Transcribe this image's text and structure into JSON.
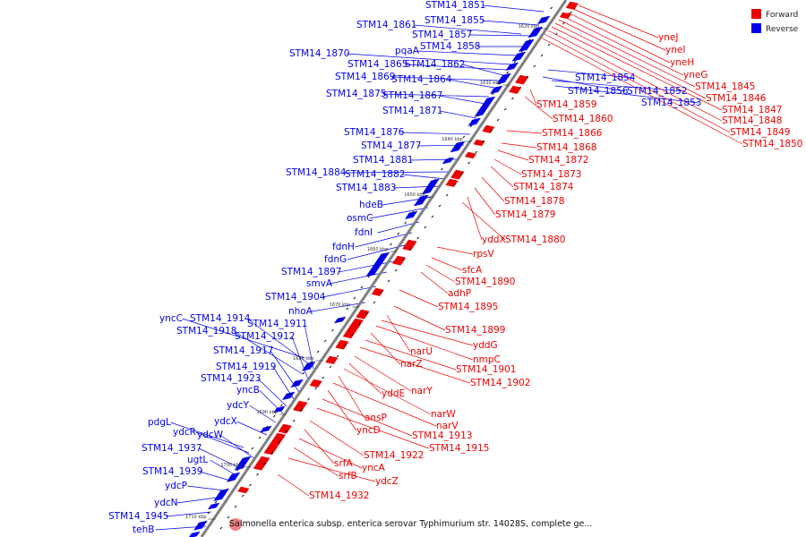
{
  "legend": {
    "forward_label": "Forward",
    "reverse_label": "Reverse",
    "forward_color": "#ee0000",
    "reverse_color": "#0000ee"
  },
  "caption": "Salmonella enterica subsp. enterica serovar Typhimurium str. 14028S, complete ge...",
  "colors": {
    "backbone": "#808080",
    "connector_forward": "#ee0000",
    "connector_reverse": "#0000ee",
    "tick_marker": "#111111"
  },
  "ticks": [
    "1620 kbp",
    "1630 kbp",
    "1640 kbp",
    "1650 kbp",
    "1660 kbp",
    "1670 kbp",
    "1680 kbp",
    "1690 kbp",
    "1700 kbp",
    "1710 kbp"
  ],
  "reverse_genes": [
    "STM14_1851",
    "STM14_1855",
    "STM14_1857",
    "STM14_1858",
    "STM14_1861",
    "pqaA",
    "STM14_1870",
    "STM14_1865",
    "STM14_1862",
    "STM14_1869",
    "STM14_1864",
    "STM14_1875",
    "STM14_1867",
    "STM14_1871",
    "STM14_1876",
    "STM14_1877",
    "STM14_1881",
    "STM14_1884",
    "STM14_1882",
    "STM14_1883",
    "hdeB",
    "osmC",
    "fdnI",
    "fdnH",
    "fdnG",
    "STM14_1897",
    "smvA",
    "STM14_1904",
    "nhoA",
    "yncC",
    "STM14_1914",
    "STM14_1911",
    "STM14_1918",
    "STM14_1912",
    "STM14_1917",
    "STM14_1919",
    "STM14_1923",
    "yncB",
    "ydcY",
    "ydcX",
    "pdgL",
    "ydcR",
    "ydcW",
    "STM14_1937",
    "ugtL",
    "STM14_1939",
    "ydcP",
    "ydcN",
    "STM14_1945",
    "tehB",
    "STM14_1854",
    "STM14_1856",
    "STM14_1852",
    "STM14_1853"
  ],
  "forward_genes": [
    "yneJ",
    "yneI",
    "yneH",
    "yneG",
    "STM14_1845",
    "STM14_1846",
    "STM14_1847",
    "STM14_1848",
    "STM14_1849",
    "STM14_1850",
    "STM14_1859",
    "STM14_1860",
    "STM14_1866",
    "STM14_1868",
    "STM14_1872",
    "STM14_1873",
    "STM14_1874",
    "STM14_1878",
    "STM14_1879",
    "yddX",
    "STM14_1880",
    "rpsV",
    "sfcA",
    "STM14_1890",
    "adhP",
    "STM14_1895",
    "STM14_1899",
    "narU",
    "yddG",
    "nmpC",
    "narZ",
    "STM14_1901",
    "STM14_1902",
    "narY",
    "yddE",
    "narW",
    "ansP",
    "narV",
    "yncD",
    "STM14_1913",
    "STM14_1915",
    "STM14_1922",
    "srfA",
    "yncA",
    "srfB",
    "ydcZ",
    "STM14_1932"
  ]
}
